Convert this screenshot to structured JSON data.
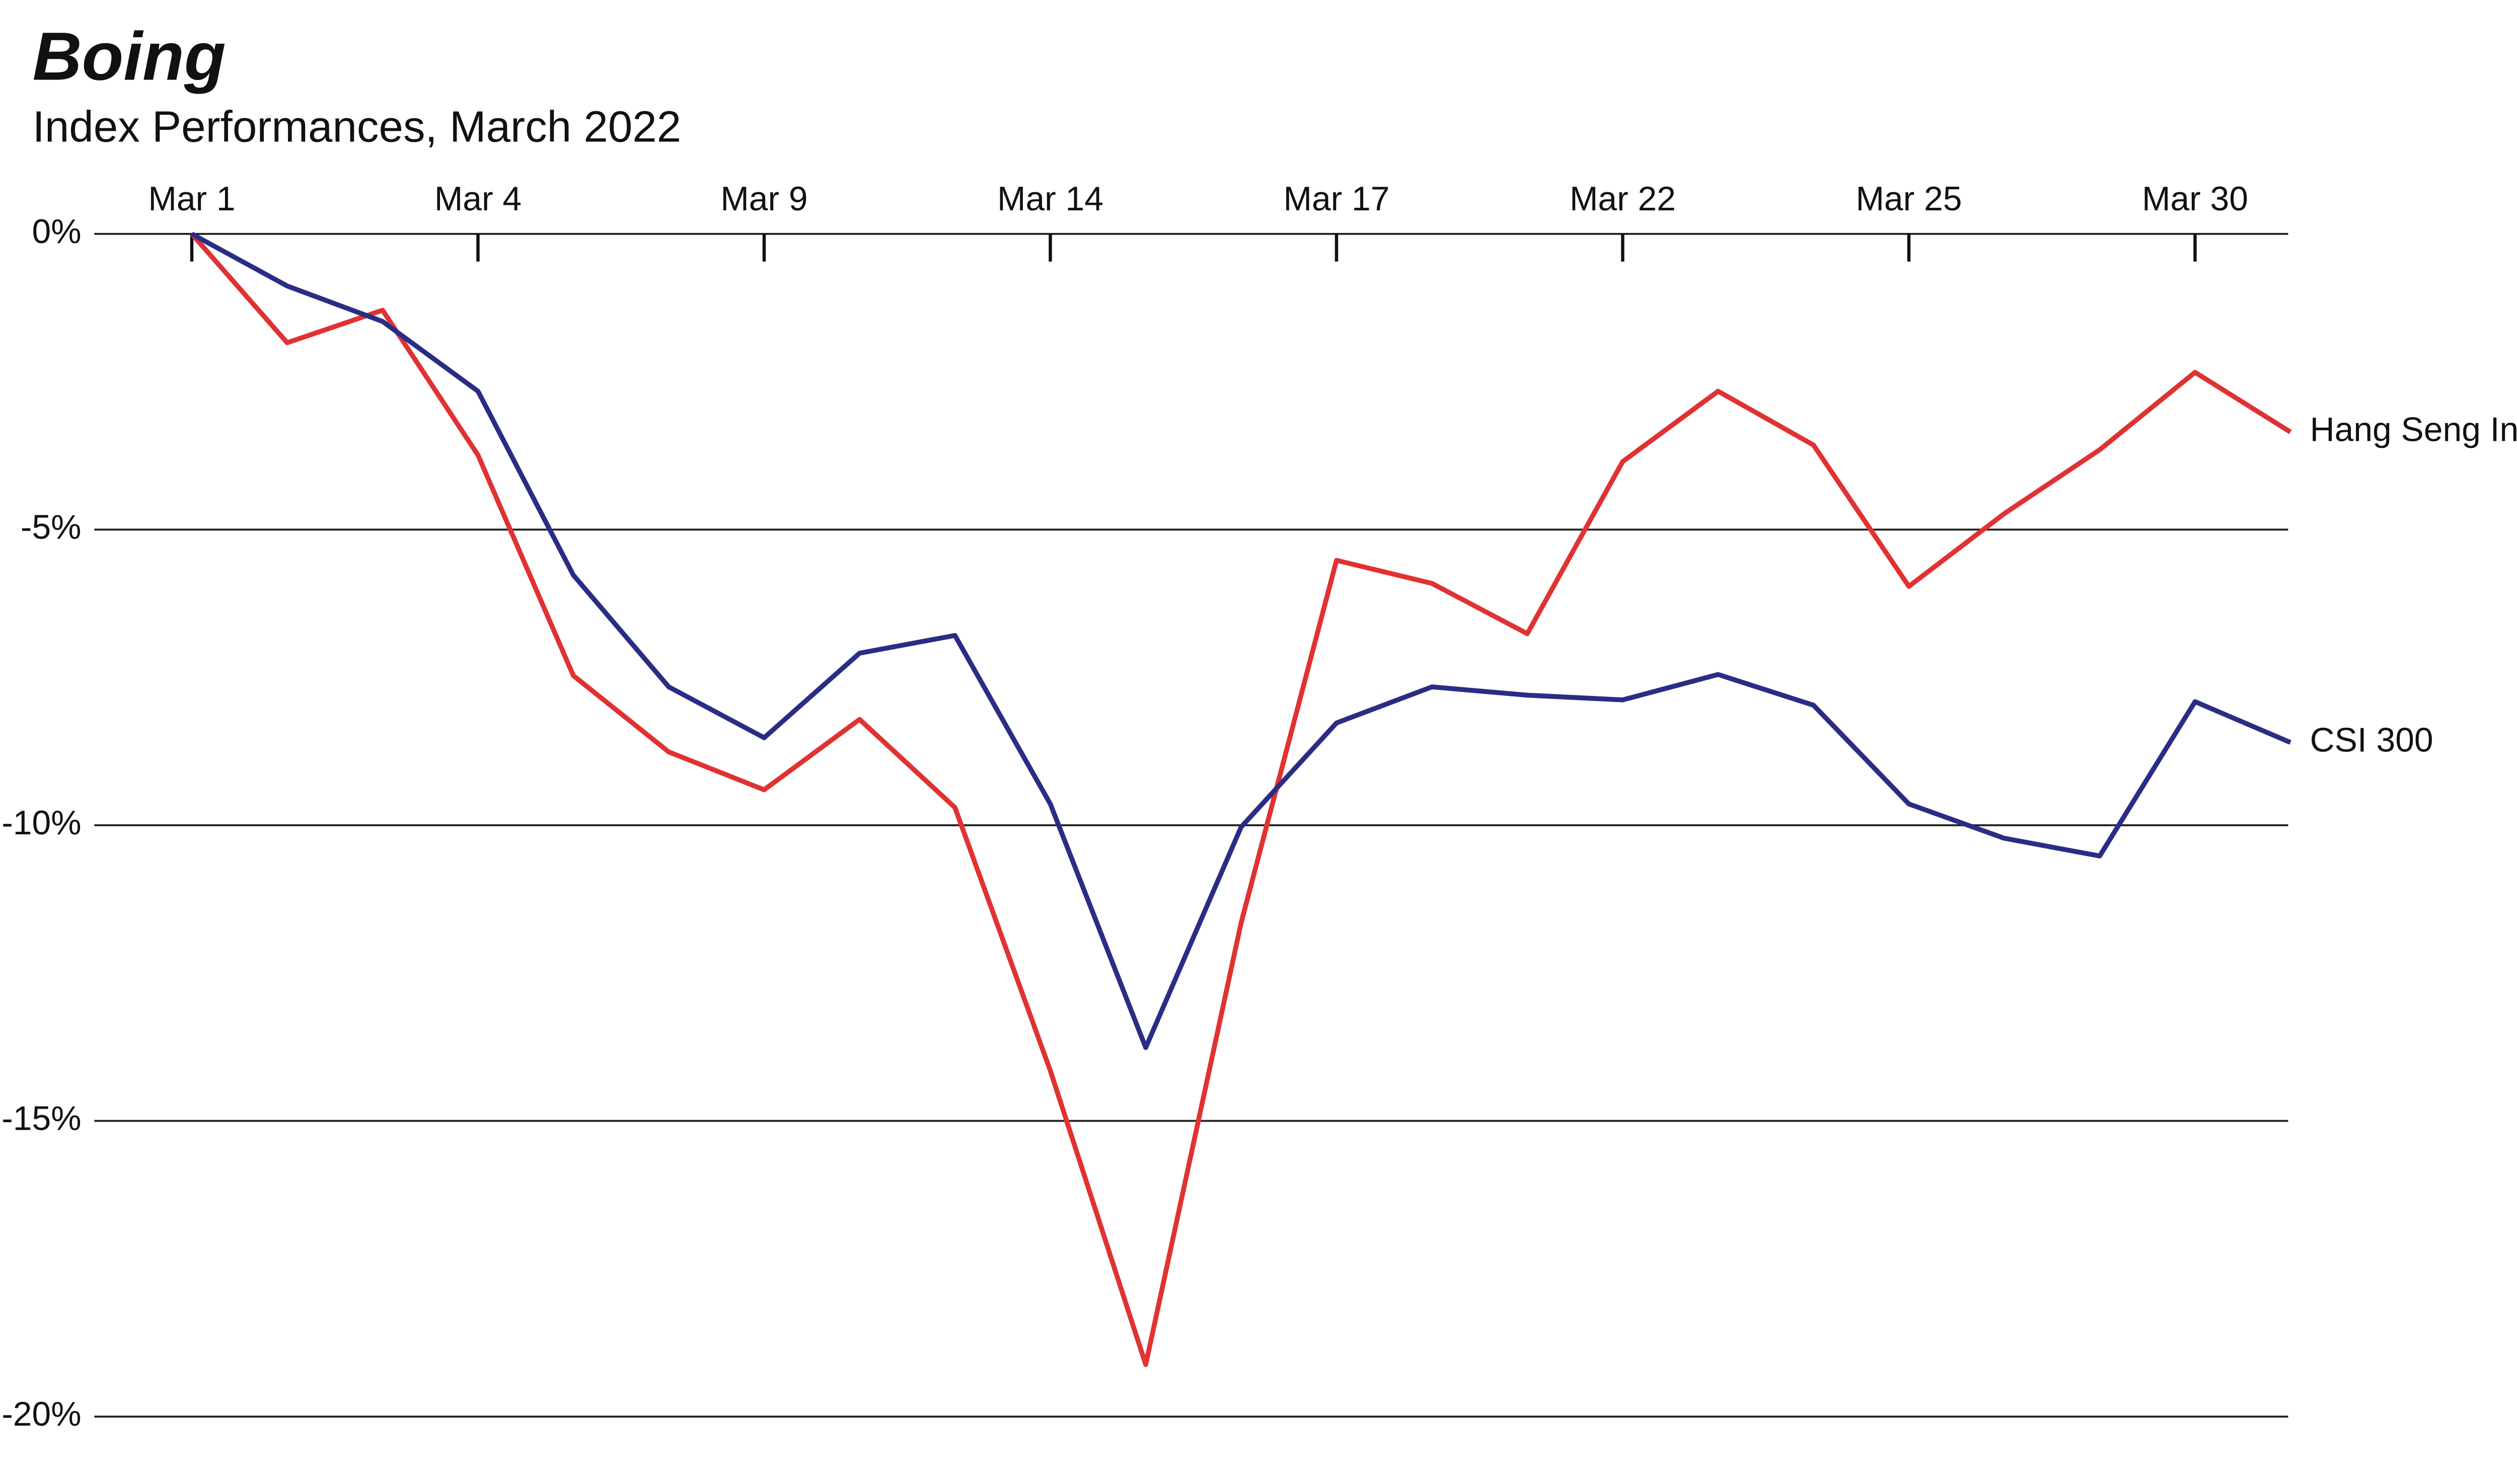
{
  "chart_data": {
    "type": "line",
    "title": "Boing",
    "subtitle": "Index Performances, March 2022",
    "categories": [
      "Mar 1",
      null,
      null,
      "Mar 4",
      null,
      null,
      "Mar 9",
      null,
      null,
      "Mar 14",
      null,
      null,
      "Mar 17",
      null,
      null,
      "Mar 22",
      null,
      null,
      "Mar 25",
      null,
      null,
      "Mar 30",
      null
    ],
    "series": [
      {
        "name": "Hang Seng Index",
        "color": "#e03232",
        "values": [
          0,
          -1.84,
          -1.29,
          -3.74,
          -7.47,
          -8.76,
          -9.4,
          -8.21,
          -9.7,
          -14.15,
          -19.12,
          -11.65,
          -5.52,
          -5.91,
          -6.76,
          -3.85,
          -2.66,
          -3.57,
          -5.96,
          -4.73,
          -3.65,
          -2.34,
          -3.35
        ]
      },
      {
        "name": "CSI 300",
        "color": "#2a2d85",
        "values": [
          0,
          -0.88,
          -1.48,
          -2.66,
          -5.77,
          -7.66,
          -8.52,
          -7.09,
          -6.79,
          -9.64,
          -13.76,
          -10.03,
          -8.27,
          -7.66,
          -7.8,
          -7.88,
          -7.45,
          -7.97,
          -9.64,
          -10.22,
          -10.52,
          -7.91,
          -8.6
        ]
      }
    ],
    "ylim": [
      -20,
      0
    ],
    "yticks": [
      {
        "value": 0,
        "label": "0%"
      },
      {
        "value": -5,
        "label": "-5%"
      },
      {
        "value": -10,
        "label": "-10%"
      },
      {
        "value": -15,
        "label": "-15%"
      },
      {
        "value": -20,
        "label": "-20%"
      }
    ],
    "grid": true
  }
}
